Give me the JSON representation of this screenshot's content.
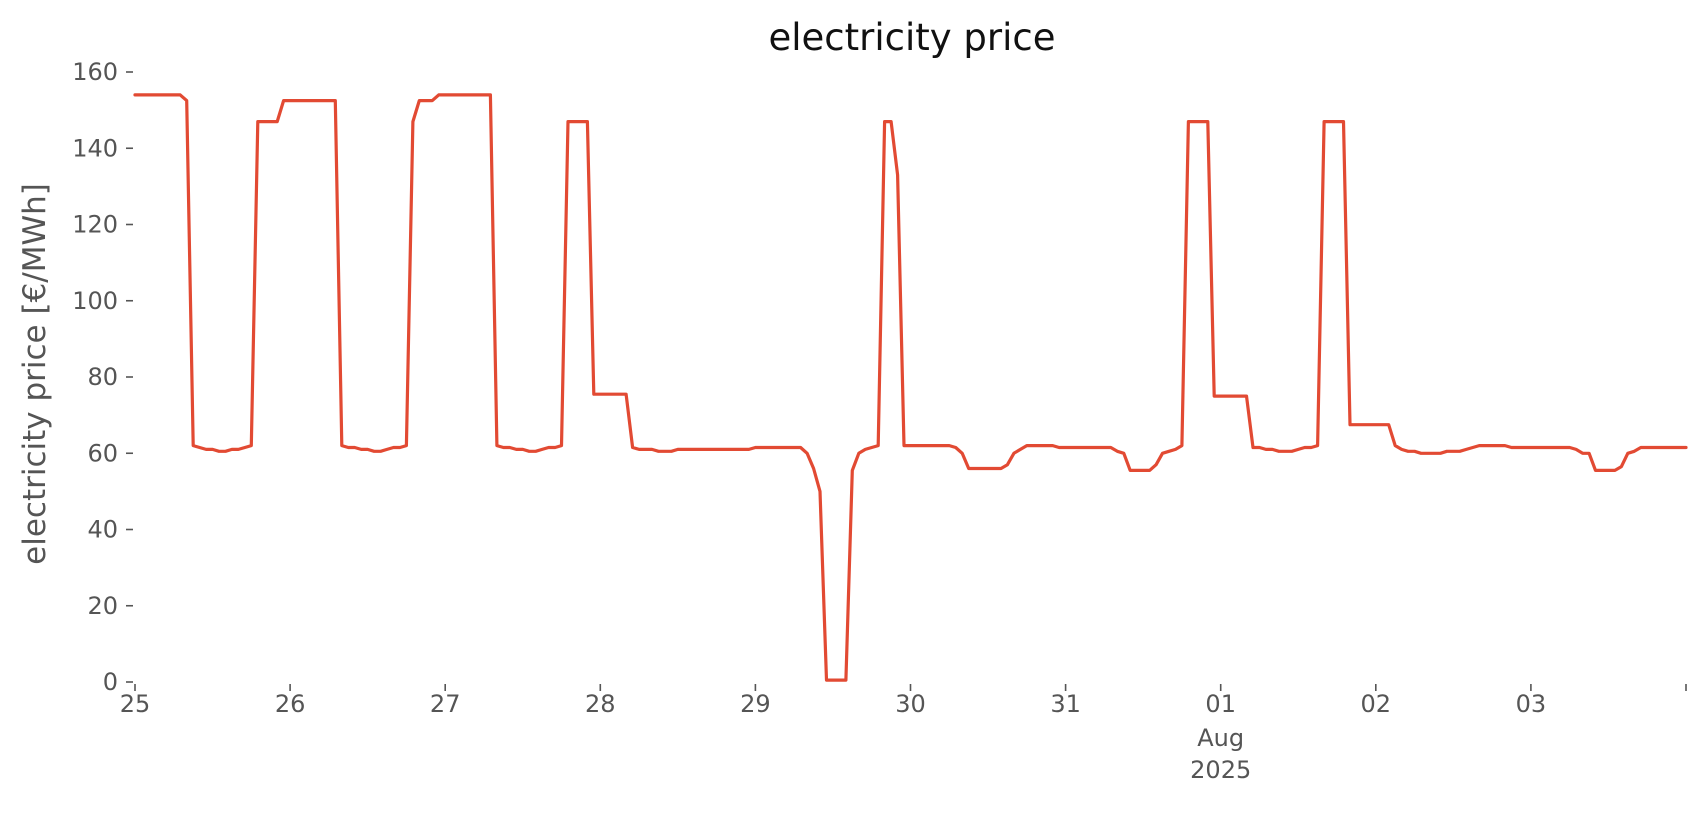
{
  "chart_data": {
    "type": "line",
    "title": "electricity price",
    "xlabel": "",
    "ylabel": "electricity price [€/MWh]",
    "ylim": [
      0,
      160
    ],
    "xlim": [
      "2025-07-25T00:00",
      "2025-08-04T00:00"
    ],
    "grid": false,
    "y_ticks": [
      0,
      20,
      40,
      60,
      80,
      100,
      120,
      140,
      160
    ],
    "x_ticks": [
      {
        "date": "2025-07-25T00:00",
        "label": "25"
      },
      {
        "date": "2025-07-26T00:00",
        "label": "26"
      },
      {
        "date": "2025-07-27T00:00",
        "label": "27"
      },
      {
        "date": "2025-07-28T00:00",
        "label": "28"
      },
      {
        "date": "2025-07-29T00:00",
        "label": "29"
      },
      {
        "date": "2025-07-30T00:00",
        "label": "30"
      },
      {
        "date": "2025-07-31T00:00",
        "label": "31"
      },
      {
        "date": "2025-08-01T00:00",
        "label": "01",
        "sublabels": [
          "Aug",
          "2025"
        ]
      },
      {
        "date": "2025-08-02T00:00",
        "label": "02"
      },
      {
        "date": "2025-08-03T00:00",
        "label": "03"
      },
      {
        "date": "2025-08-04T00:00",
        "label": ""
      }
    ],
    "series": [
      {
        "color": "#E24A33",
        "points": [
          [
            "2025-07-25T00:00",
            154
          ],
          [
            "2025-07-25T07:00",
            154
          ],
          [
            "2025-07-25T08:00",
            152.5
          ],
          [
            "2025-07-25T09:00",
            62
          ],
          [
            "2025-07-25T10:00",
            61.5
          ],
          [
            "2025-07-25T11:00",
            61
          ],
          [
            "2025-07-25T12:00",
            61
          ],
          [
            "2025-07-25T13:00",
            60.5
          ],
          [
            "2025-07-25T14:00",
            60.5
          ],
          [
            "2025-07-25T15:00",
            61
          ],
          [
            "2025-07-25T16:00",
            61
          ],
          [
            "2025-07-25T17:00",
            61.5
          ],
          [
            "2025-07-25T18:00",
            62
          ],
          [
            "2025-07-25T19:00",
            147
          ],
          [
            "2025-07-25T20:00",
            147
          ],
          [
            "2025-07-25T21:00",
            147
          ],
          [
            "2025-07-25T22:00",
            147
          ],
          [
            "2025-07-25T23:00",
            152.5
          ],
          [
            "2025-07-26T00:00",
            152.5
          ],
          [
            "2025-07-26T06:00",
            152.5
          ],
          [
            "2025-07-26T07:00",
            152.5
          ],
          [
            "2025-07-26T08:00",
            62
          ],
          [
            "2025-07-26T09:00",
            61.5
          ],
          [
            "2025-07-26T10:00",
            61.5
          ],
          [
            "2025-07-26T11:00",
            61
          ],
          [
            "2025-07-26T12:00",
            61
          ],
          [
            "2025-07-26T13:00",
            60.5
          ],
          [
            "2025-07-26T14:00",
            60.5
          ],
          [
            "2025-07-26T15:00",
            61
          ],
          [
            "2025-07-26T16:00",
            61.5
          ],
          [
            "2025-07-26T17:00",
            61.5
          ],
          [
            "2025-07-26T18:00",
            62
          ],
          [
            "2025-07-26T19:00",
            147
          ],
          [
            "2025-07-26T20:00",
            152.5
          ],
          [
            "2025-07-26T22:00",
            152.5
          ],
          [
            "2025-07-26T23:00",
            154
          ],
          [
            "2025-07-27T00:00",
            154
          ],
          [
            "2025-07-27T07:00",
            154
          ],
          [
            "2025-07-27T08:00",
            62
          ],
          [
            "2025-07-27T09:00",
            61.5
          ],
          [
            "2025-07-27T10:00",
            61.5
          ],
          [
            "2025-07-27T11:00",
            61
          ],
          [
            "2025-07-27T12:00",
            61
          ],
          [
            "2025-07-27T13:00",
            60.5
          ],
          [
            "2025-07-27T14:00",
            60.5
          ],
          [
            "2025-07-27T15:00",
            61
          ],
          [
            "2025-07-27T16:00",
            61.5
          ],
          [
            "2025-07-27T17:00",
            61.5
          ],
          [
            "2025-07-27T18:00",
            62
          ],
          [
            "2025-07-27T19:00",
            147
          ],
          [
            "2025-07-27T22:00",
            147
          ],
          [
            "2025-07-27T23:00",
            75.5
          ],
          [
            "2025-07-28T00:00",
            75.5
          ],
          [
            "2025-07-28T03:00",
            75.5
          ],
          [
            "2025-07-28T04:00",
            75.5
          ],
          [
            "2025-07-28T05:00",
            61.5
          ],
          [
            "2025-07-28T06:00",
            61
          ],
          [
            "2025-07-28T07:00",
            61
          ],
          [
            "2025-07-28T08:00",
            61
          ],
          [
            "2025-07-28T09:00",
            60.5
          ],
          [
            "2025-07-28T11:00",
            60.5
          ],
          [
            "2025-07-28T12:00",
            61
          ],
          [
            "2025-07-28T18:00",
            61
          ],
          [
            "2025-07-28T23:00",
            61
          ],
          [
            "2025-07-29T00:00",
            61.5
          ],
          [
            "2025-07-29T06:00",
            61.5
          ],
          [
            "2025-07-29T07:00",
            61.5
          ],
          [
            "2025-07-29T08:00",
            60
          ],
          [
            "2025-07-29T09:00",
            56
          ],
          [
            "2025-07-29T10:00",
            50
          ],
          [
            "2025-07-29T11:00",
            0.5
          ],
          [
            "2025-07-29T12:00",
            0.5
          ],
          [
            "2025-07-29T13:00",
            0.5
          ],
          [
            "2025-07-29T14:00",
            0.5
          ],
          [
            "2025-07-29T15:00",
            55.5
          ],
          [
            "2025-07-29T16:00",
            60
          ],
          [
            "2025-07-29T17:00",
            61
          ],
          [
            "2025-07-29T18:00",
            61.5
          ],
          [
            "2025-07-29T19:00",
            62
          ],
          [
            "2025-07-29T20:00",
            147
          ],
          [
            "2025-07-29T21:00",
            147
          ],
          [
            "2025-07-29T22:00",
            133
          ],
          [
            "2025-07-29T23:00",
            62
          ],
          [
            "2025-07-30T00:00",
            62
          ],
          [
            "2025-07-30T06:00",
            62
          ],
          [
            "2025-07-30T07:00",
            61.5
          ],
          [
            "2025-07-30T08:00",
            60
          ],
          [
            "2025-07-30T09:00",
            56
          ],
          [
            "2025-07-30T10:00",
            56
          ],
          [
            "2025-07-30T14:00",
            56
          ],
          [
            "2025-07-30T15:00",
            57
          ],
          [
            "2025-07-30T16:00",
            60
          ],
          [
            "2025-07-30T17:00",
            61
          ],
          [
            "2025-07-30T18:00",
            62
          ],
          [
            "2025-07-30T22:00",
            62
          ],
          [
            "2025-07-30T23:00",
            61.5
          ],
          [
            "2025-07-31T00:00",
            61.5
          ],
          [
            "2025-07-31T07:00",
            61.5
          ],
          [
            "2025-07-31T08:00",
            60.5
          ],
          [
            "2025-07-31T09:00",
            60
          ],
          [
            "2025-07-31T10:00",
            55.5
          ],
          [
            "2025-07-31T13:00",
            55.5
          ],
          [
            "2025-07-31T14:00",
            57
          ],
          [
            "2025-07-31T15:00",
            60
          ],
          [
            "2025-07-31T16:00",
            60.5
          ],
          [
            "2025-07-31T17:00",
            61
          ],
          [
            "2025-07-31T18:00",
            62
          ],
          [
            "2025-07-31T19:00",
            147
          ],
          [
            "2025-07-31T22:00",
            147
          ],
          [
            "2025-07-31T23:00",
            75
          ],
          [
            "2025-08-01T00:00",
            75
          ],
          [
            "2025-08-01T04:00",
            75
          ],
          [
            "2025-08-01T05:00",
            61.5
          ],
          [
            "2025-08-01T06:00",
            61.5
          ],
          [
            "2025-08-01T07:00",
            61
          ],
          [
            "2025-08-01T08:00",
            61
          ],
          [
            "2025-08-01T09:00",
            60.5
          ],
          [
            "2025-08-01T11:00",
            60.5
          ],
          [
            "2025-08-01T12:00",
            61
          ],
          [
            "2025-08-01T13:00",
            61.5
          ],
          [
            "2025-08-01T14:00",
            61.5
          ],
          [
            "2025-08-01T15:00",
            62
          ],
          [
            "2025-08-01T16:00",
            147
          ],
          [
            "2025-08-01T19:00",
            147
          ],
          [
            "2025-08-01T20:00",
            67.5
          ],
          [
            "2025-08-02T00:00",
            67.5
          ],
          [
            "2025-08-02T02:00",
            67.5
          ],
          [
            "2025-08-02T03:00",
            62
          ],
          [
            "2025-08-02T04:00",
            61
          ],
          [
            "2025-08-02T05:00",
            60.5
          ],
          [
            "2025-08-02T06:00",
            60.5
          ],
          [
            "2025-08-02T07:00",
            60
          ],
          [
            "2025-08-02T10:00",
            60
          ],
          [
            "2025-08-02T11:00",
            60.5
          ],
          [
            "2025-08-02T13:00",
            60.5
          ],
          [
            "2025-08-02T14:00",
            61
          ],
          [
            "2025-08-02T16:00",
            62
          ],
          [
            "2025-08-02T20:00",
            62
          ],
          [
            "2025-08-02T21:00",
            61.5
          ],
          [
            "2025-08-03T00:00",
            61.5
          ],
          [
            "2025-08-03T06:00",
            61.5
          ],
          [
            "2025-08-03T07:00",
            61
          ],
          [
            "2025-08-03T08:00",
            60
          ],
          [
            "2025-08-03T09:00",
            60
          ],
          [
            "2025-08-03T10:00",
            55.5
          ],
          [
            "2025-08-03T13:00",
            55.5
          ],
          [
            "2025-08-03T14:00",
            56.5
          ],
          [
            "2025-08-03T15:00",
            60
          ],
          [
            "2025-08-03T16:00",
            60.5
          ],
          [
            "2025-08-03T17:00",
            61.5
          ],
          [
            "2025-08-03T20:00",
            61.5
          ],
          [
            "2025-08-04T00:00",
            61.5
          ]
        ]
      }
    ]
  }
}
